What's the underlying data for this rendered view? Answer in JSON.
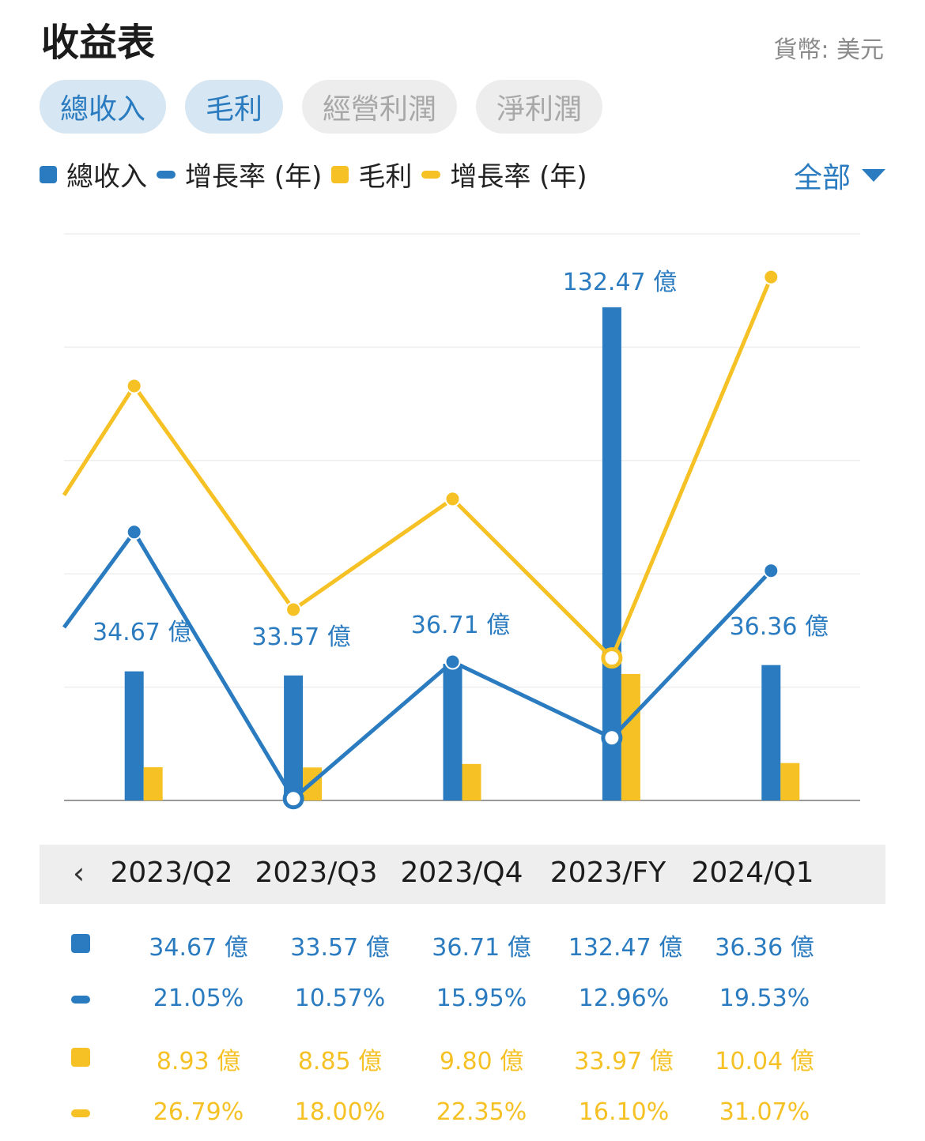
{
  "title": "收益表",
  "currency": "貨幣: 美元",
  "tabs": [
    {
      "label": "總收入",
      "active": true
    },
    {
      "label": "毛利",
      "active": true
    },
    {
      "label": "經營利潤",
      "active": false
    },
    {
      "label": "淨利潤",
      "active": false
    }
  ],
  "legend": {
    "revenue": "總收入",
    "revenue_growth": "增長率 (年)",
    "gross": "毛利",
    "gross_growth": "增長率 (年)"
  },
  "filter_label": "全部",
  "colors": {
    "blue": "#2a7bbf",
    "yellow": "#f5c125"
  },
  "periods": [
    "2023/Q2",
    "2023/Q3",
    "2023/Q4",
    "2023/FY",
    "2024/Q1"
  ],
  "chart_data": {
    "type": "bar",
    "categories": [
      "2023/Q2",
      "2023/Q3",
      "2023/Q4",
      "2023/FY",
      "2024/Q1"
    ],
    "series": [
      {
        "name": "總收入",
        "kind": "bar",
        "unit": "億",
        "values": [
          34.67,
          33.57,
          36.71,
          132.47,
          36.36
        ],
        "labels": [
          "34.67 億",
          "33.57 億",
          "36.71 億",
          "132.47 億",
          "36.36 億"
        ]
      },
      {
        "name": "毛利",
        "kind": "bar",
        "unit": "億",
        "values": [
          8.93,
          8.85,
          9.8,
          33.97,
          10.04
        ]
      },
      {
        "name": "增長率 (年)",
        "kind": "line",
        "unit": "%",
        "values": [
          21.05,
          10.57,
          15.95,
          12.96,
          19.53
        ]
      },
      {
        "name": "增長率 (年)",
        "kind": "line",
        "unit": "%",
        "values": [
          26.79,
          18.0,
          22.35,
          16.1,
          31.07
        ]
      }
    ],
    "grid": true,
    "legend_position": "top"
  },
  "table": {
    "revenue": [
      "34.67 億",
      "33.57 億",
      "36.71 億",
      "132.47 億",
      "36.36 億"
    ],
    "revenue_growth": [
      "21.05%",
      "10.57%",
      "15.95%",
      "12.96%",
      "19.53%"
    ],
    "gross": [
      "8.93 億",
      "8.85 億",
      "9.80 億",
      "33.97 億",
      "10.04 億"
    ],
    "gross_growth": [
      "26.79%",
      "18.00%",
      "22.35%",
      "16.10%",
      "31.07%"
    ]
  }
}
